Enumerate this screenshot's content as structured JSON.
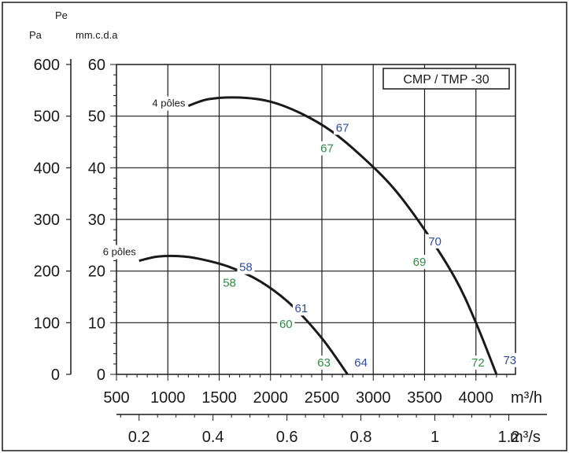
{
  "chart_data": {
    "type": "line",
    "title": "CMP / TMP -30",
    "units": {
      "pa": "Pa",
      "pe": "Pe",
      "mmcda": "mm.c.d.a",
      "flow_h": "m³/h",
      "flow_s": "m³/s"
    },
    "x_ticks": [
      500,
      1000,
      1500,
      2000,
      2500,
      3000,
      3500,
      4000
    ],
    "x_ticks_s": [
      "0.2",
      "0.4",
      "0.6",
      "0.8",
      "1",
      "1.2"
    ],
    "y_ticks_pa": [
      0,
      100,
      200,
      300,
      400,
      500,
      600
    ],
    "y_ticks_mm": [
      0,
      10,
      20,
      30,
      40,
      50,
      60
    ],
    "xlim": [
      500,
      4300
    ],
    "ylim_mm": [
      0,
      60
    ],
    "grid": true,
    "series": [
      {
        "name": "4 pôles",
        "points": [
          [
            1200,
            52
          ],
          [
            1400,
            53.3
          ],
          [
            1700,
            53.6
          ],
          [
            2000,
            52.8
          ],
          [
            2300,
            50.5
          ],
          [
            2600,
            47
          ],
          [
            2900,
            42
          ],
          [
            3200,
            36
          ],
          [
            3500,
            28
          ],
          [
            3800,
            18.5
          ],
          [
            4000,
            10
          ],
          [
            4200,
            0
          ]
        ]
      },
      {
        "name": "6 pôles",
        "points": [
          [
            720,
            22
          ],
          [
            900,
            22.8
          ],
          [
            1100,
            22.9
          ],
          [
            1300,
            22.4
          ],
          [
            1600,
            20.8
          ],
          [
            1900,
            18
          ],
          [
            2200,
            13.5
          ],
          [
            2500,
            7
          ],
          [
            2750,
            0
          ]
        ]
      }
    ],
    "annotations": [
      {
        "text": "67",
        "x": 2700,
        "y": 47,
        "color": "blue"
      },
      {
        "text": "67",
        "x": 2550,
        "y": 43,
        "color": "green"
      },
      {
        "text": "70",
        "x": 3600,
        "y": 25,
        "color": "blue"
      },
      {
        "text": "69",
        "x": 3450,
        "y": 21,
        "color": "green"
      },
      {
        "text": "72",
        "x": 4020,
        "y": 1.5,
        "color": "green"
      },
      {
        "text": "73",
        "x": 4330,
        "y": 2,
        "color": "blue"
      },
      {
        "text": "58",
        "x": 1760,
        "y": 20,
        "color": "blue"
      },
      {
        "text": "58",
        "x": 1600,
        "y": 17,
        "color": "green"
      },
      {
        "text": "61",
        "x": 2300,
        "y": 12,
        "color": "blue"
      },
      {
        "text": "60",
        "x": 2150,
        "y": 9,
        "color": "green"
      },
      {
        "text": "63",
        "x": 2520,
        "y": 1.5,
        "color": "green"
      },
      {
        "text": "64",
        "x": 2880,
        "y": 1.5,
        "color": "blue"
      }
    ]
  },
  "colors": {
    "blue": "#2f4d9f",
    "green": "#2e8b45",
    "ink": "#1a1a1a"
  }
}
